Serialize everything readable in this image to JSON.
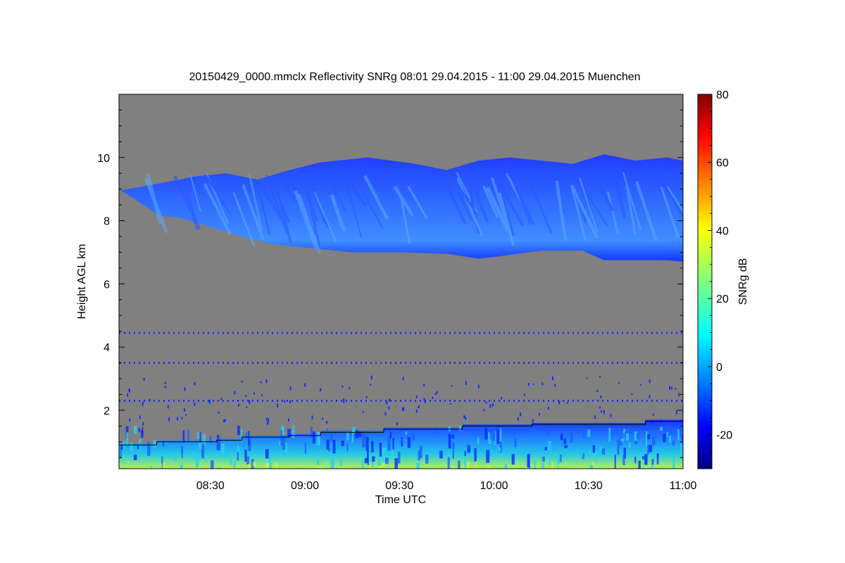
{
  "chart_data": {
    "type": "heatmap",
    "title": "20150429_0000.mmclx Reflectivity SNRg   08:01 29.04.2015 - 11:00 29.04.2015 Muenchen",
    "xlabel": "Time UTC",
    "ylabel": "Height AGL km",
    "x_range": [
      "08:01",
      "11:00"
    ],
    "xlim_minutes": [
      481,
      660
    ],
    "ylim": [
      0.15,
      12.0
    ],
    "x_ticks": [
      {
        "label": "08:30",
        "minutes": 510
      },
      {
        "label": "09:00",
        "minutes": 540
      },
      {
        "label": "09:30",
        "minutes": 570
      },
      {
        "label": "10:00",
        "minutes": 600
      },
      {
        "label": "10:30",
        "minutes": 630
      },
      {
        "label": "11:00",
        "minutes": 660
      }
    ],
    "y_ticks": [
      {
        "label": "2",
        "value": 2
      },
      {
        "label": "4",
        "value": 4
      },
      {
        "label": "6",
        "value": 6
      },
      {
        "label": "8",
        "value": 8
      },
      {
        "label": "10",
        "value": 10
      }
    ],
    "colorbar": {
      "label": "SNRg dB",
      "range": [
        -30,
        80
      ],
      "ticks": [
        {
          "label": "-20",
          "value": -20
        },
        {
          "label": "0",
          "value": 0
        },
        {
          "label": "20",
          "value": 20
        },
        {
          "label": "40",
          "value": 40
        },
        {
          "label": "60",
          "value": 60
        },
        {
          "label": "80",
          "value": 80
        }
      ],
      "colormap": "jet"
    },
    "background_color": "#808080",
    "cloud_layer": {
      "base_km": [
        {
          "t": 481,
          "v": 9.0
        },
        {
          "t": 494,
          "v": 8.15
        },
        {
          "t": 500,
          "v": 8.1
        },
        {
          "t": 510,
          "v": 7.8
        },
        {
          "t": 520,
          "v": 7.5
        },
        {
          "t": 530,
          "v": 7.25
        },
        {
          "t": 540,
          "v": 7.15
        },
        {
          "t": 555,
          "v": 7.0
        },
        {
          "t": 570,
          "v": 7.0
        },
        {
          "t": 585,
          "v": 6.95
        },
        {
          "t": 595,
          "v": 6.8
        },
        {
          "t": 600,
          "v": 6.85
        },
        {
          "t": 615,
          "v": 7.05
        },
        {
          "t": 628,
          "v": 7.05
        },
        {
          "t": 635,
          "v": 6.75
        },
        {
          "t": 645,
          "v": 6.75
        },
        {
          "t": 655,
          "v": 6.75
        },
        {
          "t": 660,
          "v": 6.7
        }
      ],
      "top_km": [
        {
          "t": 481,
          "v": 8.95
        },
        {
          "t": 495,
          "v": 9.2
        },
        {
          "t": 505,
          "v": 9.4
        },
        {
          "t": 515,
          "v": 9.5
        },
        {
          "t": 525,
          "v": 9.3
        },
        {
          "t": 535,
          "v": 9.6
        },
        {
          "t": 545,
          "v": 9.85
        },
        {
          "t": 560,
          "v": 10.0
        },
        {
          "t": 575,
          "v": 9.8
        },
        {
          "t": 585,
          "v": 9.6
        },
        {
          "t": 595,
          "v": 9.9
        },
        {
          "t": 605,
          "v": 10.0
        },
        {
          "t": 615,
          "v": 9.9
        },
        {
          "t": 625,
          "v": 9.8
        },
        {
          "t": 635,
          "v": 10.1
        },
        {
          "t": 645,
          "v": 9.9
        },
        {
          "t": 655,
          "v": 10.0
        },
        {
          "t": 660,
          "v": 9.9
        }
      ]
    },
    "range_lines_km": [
      4.45,
      3.5,
      2.3
    ],
    "boundary_layer_top_km": [
      {
        "t": 481,
        "v": 0.9
      },
      {
        "t": 493,
        "v": 0.9
      },
      {
        "t": 493,
        "v": 1.0
      },
      {
        "t": 512,
        "v": 1.0
      },
      {
        "t": 512,
        "v": 1.05
      },
      {
        "t": 520,
        "v": 1.05
      },
      {
        "t": 520,
        "v": 1.15
      },
      {
        "t": 535,
        "v": 1.15
      },
      {
        "t": 535,
        "v": 1.2
      },
      {
        "t": 545,
        "v": 1.2
      },
      {
        "t": 545,
        "v": 1.3
      },
      {
        "t": 565,
        "v": 1.3
      },
      {
        "t": 565,
        "v": 1.4
      },
      {
        "t": 590,
        "v": 1.4
      },
      {
        "t": 590,
        "v": 1.5
      },
      {
        "t": 612,
        "v": 1.5
      },
      {
        "t": 612,
        "v": 1.55
      },
      {
        "t": 648,
        "v": 1.55
      },
      {
        "t": 648,
        "v": 1.65
      },
      {
        "t": 660,
        "v": 1.65
      }
    ]
  }
}
